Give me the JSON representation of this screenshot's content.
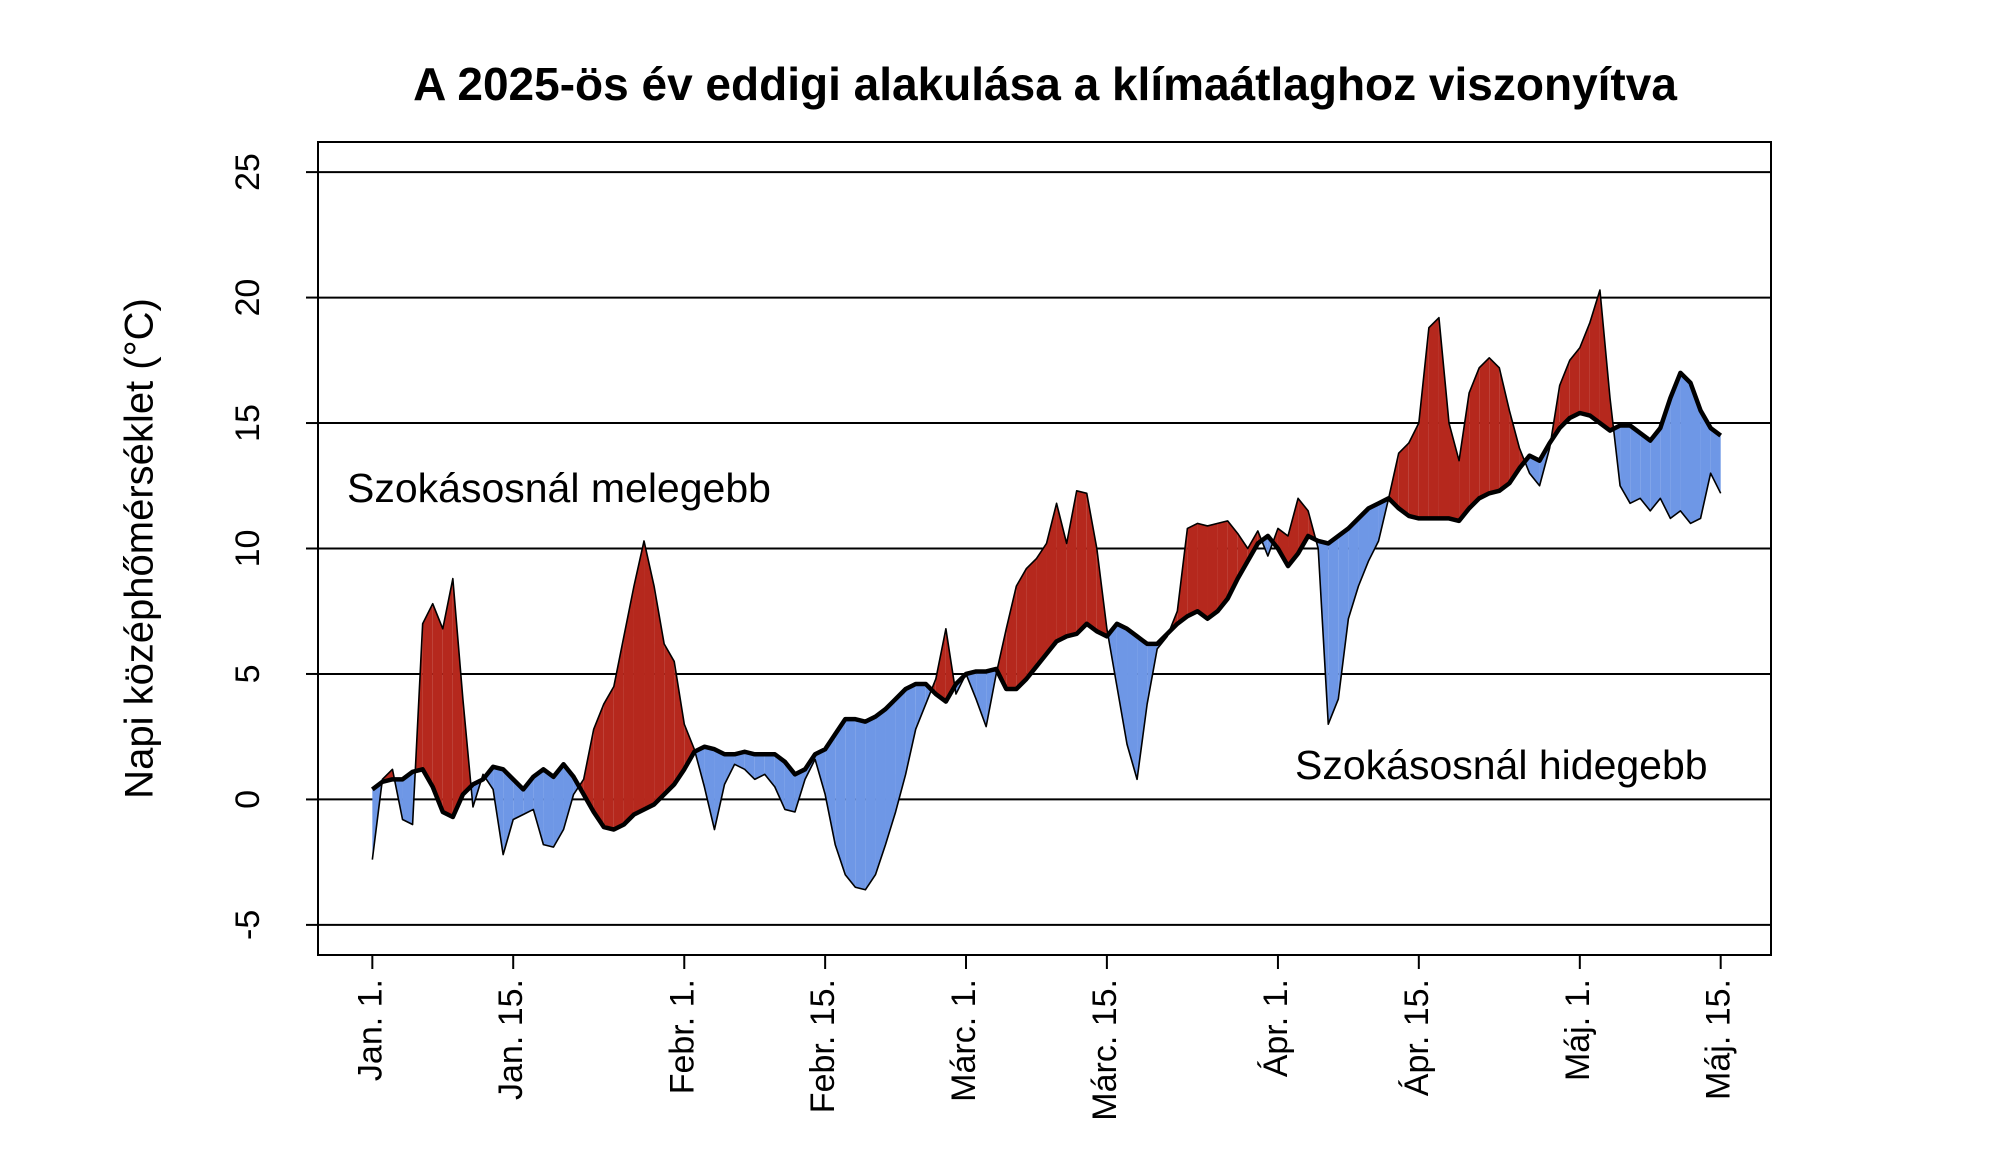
{
  "chart_data": {
    "type": "deviation_area",
    "title": "A 2025-ös év eddigi alakulása a klímaátlaghoz viszonyítva",
    "y_label": "Napi középhőmérséklet (°C)",
    "annotations": [
      {
        "text": "Szokásosnál melegebb",
        "color": "#b5281d"
      },
      {
        "text": "Szokásosnál hidegebb",
        "color": "#2f4fa8"
      }
    ],
    "x": [
      1,
      2,
      3,
      4,
      5,
      6,
      7,
      8,
      9,
      10,
      11,
      12,
      13,
      14,
      15,
      16,
      17,
      18,
      19,
      20,
      21,
      22,
      23,
      24,
      25,
      26,
      27,
      28,
      29,
      30,
      31,
      32,
      33,
      34,
      35,
      36,
      37,
      38,
      39,
      40,
      41,
      42,
      43,
      44,
      45,
      46,
      47,
      48,
      49,
      50,
      51,
      52,
      53,
      54,
      55,
      56,
      57,
      58,
      59,
      60,
      61,
      62,
      63,
      64,
      65,
      66,
      67,
      68,
      69,
      70,
      71,
      72,
      73,
      74,
      75,
      76,
      77,
      78,
      79,
      80,
      81,
      82,
      83,
      84,
      85,
      86,
      87,
      88,
      89,
      90,
      91,
      92,
      93,
      94,
      95,
      96,
      97,
      98,
      99,
      100,
      101,
      102,
      103,
      104,
      105,
      106,
      107,
      108,
      109,
      110,
      111,
      112,
      113,
      114,
      115,
      116,
      117,
      118,
      119,
      120,
      121,
      122,
      123,
      124,
      125,
      126,
      127,
      128,
      129,
      130,
      131,
      132,
      133,
      134,
      135
    ],
    "series": [
      {
        "color": "#000000",
        "values": [
          0.4,
          0.7,
          0.8,
          0.8,
          1.1,
          1.2,
          0.5,
          -0.5,
          -0.7,
          0.2,
          0.6,
          0.8,
          1.3,
          1.2,
          0.8,
          0.4,
          0.9,
          1.2,
          0.9,
          1.4,
          0.9,
          0.2,
          -0.5,
          -1.1,
          -1.2,
          -1.0,
          -0.6,
          -0.4,
          -0.2,
          0.2,
          0.6,
          1.2,
          1.9,
          2.1,
          2.0,
          1.8,
          1.8,
          1.9,
          1.8,
          1.8,
          1.8,
          1.5,
          1.0,
          1.2,
          1.8,
          2.0,
          2.6,
          3.2,
          3.2,
          3.1,
          3.3,
          3.6,
          4.0,
          4.4,
          4.6,
          4.6,
          4.2,
          3.9,
          4.6,
          5.0,
          5.1,
          5.1,
          5.2,
          4.4,
          4.4,
          4.8,
          5.3,
          5.8,
          6.3,
          6.5,
          6.6,
          7.0,
          6.7,
          6.5,
          7.0,
          6.8,
          6.5,
          6.2,
          6.2,
          6.6,
          7.0,
          7.3,
          7.5,
          7.2,
          7.5,
          8.0,
          8.8,
          9.5,
          10.2,
          10.5,
          10.0,
          9.3,
          9.8,
          10.5,
          10.3,
          10.2,
          10.5,
          10.8,
          11.2,
          11.6,
          11.8,
          12.0,
          11.6,
          11.3,
          11.2,
          11.2,
          11.2,
          11.2,
          11.1,
          11.6,
          12.0,
          12.2,
          12.3,
          12.6,
          13.2,
          13.7,
          13.5,
          14.2,
          14.8,
          15.2,
          15.4,
          15.3,
          15.0,
          14.7,
          14.9,
          14.9,
          14.6,
          14.3,
          14.8,
          16.0,
          17.0,
          16.6,
          15.5,
          14.8,
          14.5
        ]
      },
      {
        "color": "#000000",
        "values": [
          -2.4,
          0.8,
          1.2,
          -0.8,
          -1.0,
          7.0,
          7.8,
          6.8,
          8.8,
          4.0,
          -0.3,
          1.0,
          0.4,
          -2.2,
          -0.8,
          -0.6,
          -0.4,
          -1.8,
          -1.9,
          -1.2,
          0.2,
          0.8,
          2.8,
          3.8,
          4.5,
          6.5,
          8.5,
          10.3,
          8.5,
          6.2,
          5.5,
          3.0,
          2.0,
          0.5,
          -1.2,
          0.6,
          1.4,
          1.2,
          0.8,
          1.0,
          0.5,
          -0.4,
          -0.5,
          0.8,
          1.6,
          0.2,
          -1.8,
          -3.0,
          -3.5,
          -3.6,
          -3.0,
          -1.8,
          -0.5,
          1.0,
          2.8,
          3.8,
          4.8,
          6.8,
          4.2,
          5.0,
          4.0,
          2.9,
          5.0,
          6.8,
          8.5,
          9.2,
          9.6,
          10.2,
          11.8,
          10.2,
          12.3,
          12.2,
          10.0,
          6.8,
          4.5,
          2.2,
          0.8,
          3.8,
          6.0,
          6.5,
          7.5,
          10.8,
          11.0,
          10.9,
          11.0,
          11.1,
          10.6,
          10.0,
          10.7,
          9.7,
          10.8,
          10.5,
          12.0,
          11.5,
          10.0,
          3.0,
          4.0,
          7.2,
          8.5,
          9.5,
          10.3,
          12.0,
          13.8,
          14.2,
          15.0,
          18.8,
          19.2,
          15.0,
          13.5,
          16.2,
          17.2,
          17.6,
          17.2,
          15.5,
          14.0,
          13.0,
          12.5,
          14.0,
          16.5,
          17.5,
          18.0,
          19.0,
          20.3,
          16.0,
          12.5,
          11.8,
          12.0,
          11.5,
          12.0,
          11.2,
          11.5,
          11.0,
          11.2,
          13.0,
          12.2
        ]
      }
    ],
    "fill_above": "#b5281d",
    "fill_below": "#6e97e6",
    "xlim": [
      -4.4,
      140
    ],
    "xticks": [
      {
        "value": 1,
        "label": "Jan. 1."
      },
      {
        "value": 15,
        "label": "Jan. 15."
      },
      {
        "value": 32,
        "label": "Febr. 1."
      },
      {
        "value": 46,
        "label": "Febr. 15."
      },
      {
        "value": 60,
        "label": "Márc. 1."
      },
      {
        "value": 74,
        "label": "Márc. 15."
      },
      {
        "value": 91,
        "label": "Ápr. 1."
      },
      {
        "value": 105,
        "label": "Ápr. 15."
      },
      {
        "value": 121,
        "label": "Máj. 1."
      },
      {
        "value": 135,
        "label": "Máj. 15."
      }
    ],
    "ylim": [
      -6.2,
      26.2
    ],
    "yticks": [
      -5,
      0,
      5,
      10,
      15,
      20,
      25
    ],
    "grid": true
  }
}
